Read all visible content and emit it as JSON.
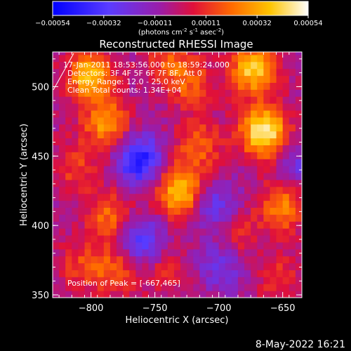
{
  "colorbar": {
    "ticks": [
      "-0.00054",
      "-0.00032",
      "-0.00011",
      "0.00011",
      "0.00032",
      "0.00054"
    ],
    "units_prefix": "(photons cm",
    "units_exp1": "-2",
    "units_mid": " s",
    "units_exp2": "-1",
    "units_mid2": " asec",
    "units_exp3": "-2",
    "units_suffix": ")"
  },
  "annotations": {
    "time_range": "17-Jan-2011 18:53:56.000 to 18:59:24.000",
    "detectors": "Detectors: 3F 4F 5F 6F 7F 8F, Att 0",
    "energy": "Energy Range: 12.0 - 25.0 keV",
    "clean": "Clean    Total counts: 1.34E+04",
    "peak": "Position of Peak = [-667,465]"
  },
  "footer": {
    "date": "8-May-2022 16:21"
  },
  "chart_data": {
    "type": "heatmap",
    "title": "Reconstructed RHESSI Image",
    "xlabel": "Heliocentric X (arcsec)",
    "ylabel": "Heliocentric Y (arcsec)",
    "xlim": [
      -830,
      -635
    ],
    "ylim": [
      348,
      525
    ],
    "x_ticks": [
      -800,
      -750,
      -700,
      -650
    ],
    "y_ticks": [
      350,
      400,
      450,
      500
    ],
    "x_tick_labels": [
      "−800",
      "−750",
      "−700",
      "−650"
    ],
    "y_tick_labels": [
      "350",
      "400",
      "450",
      "500"
    ],
    "value_range": [
      -0.00054,
      0.00054
    ],
    "peak_position": [
      -667,
      465
    ],
    "sources": [
      {
        "x": -667,
        "y": 465,
        "value": 0.00054
      },
      {
        "x": -675,
        "y": 510,
        "value": 0.00046
      },
      {
        "x": -803,
        "y": 505,
        "value": 0.00042
      },
      {
        "x": -790,
        "y": 470,
        "value": 0.00034
      },
      {
        "x": -733,
        "y": 422,
        "value": 0.00045
      },
      {
        "x": -725,
        "y": 500,
        "value": 0.00022
      },
      {
        "x": -718,
        "y": 455,
        "value": 0.00024
      },
      {
        "x": -652,
        "y": 412,
        "value": 0.00032
      },
      {
        "x": -690,
        "y": 392,
        "value": 0.0002
      },
      {
        "x": -788,
        "y": 405,
        "value": 0.00026
      },
      {
        "x": -810,
        "y": 370,
        "value": 0.00018
      },
      {
        "x": -782,
        "y": 365,
        "value": 0.00024
      },
      {
        "x": -745,
        "y": 368,
        "value": 0.00016
      },
      {
        "x": -742,
        "y": 518,
        "value": 0.0002
      },
      {
        "x": -655,
        "y": 360,
        "value": 0.00016
      },
      {
        "x": -815,
        "y": 440,
        "value": 0.00018
      },
      {
        "x": -765,
        "y": 445,
        "value": -0.0004
      },
      {
        "x": -762,
        "y": 385,
        "value": -0.0003
      },
      {
        "x": -705,
        "y": 410,
        "value": -0.00025
      },
      {
        "x": -700,
        "y": 370,
        "value": -0.0002
      },
      {
        "x": -640,
        "y": 440,
        "value": -0.00018
      }
    ]
  }
}
